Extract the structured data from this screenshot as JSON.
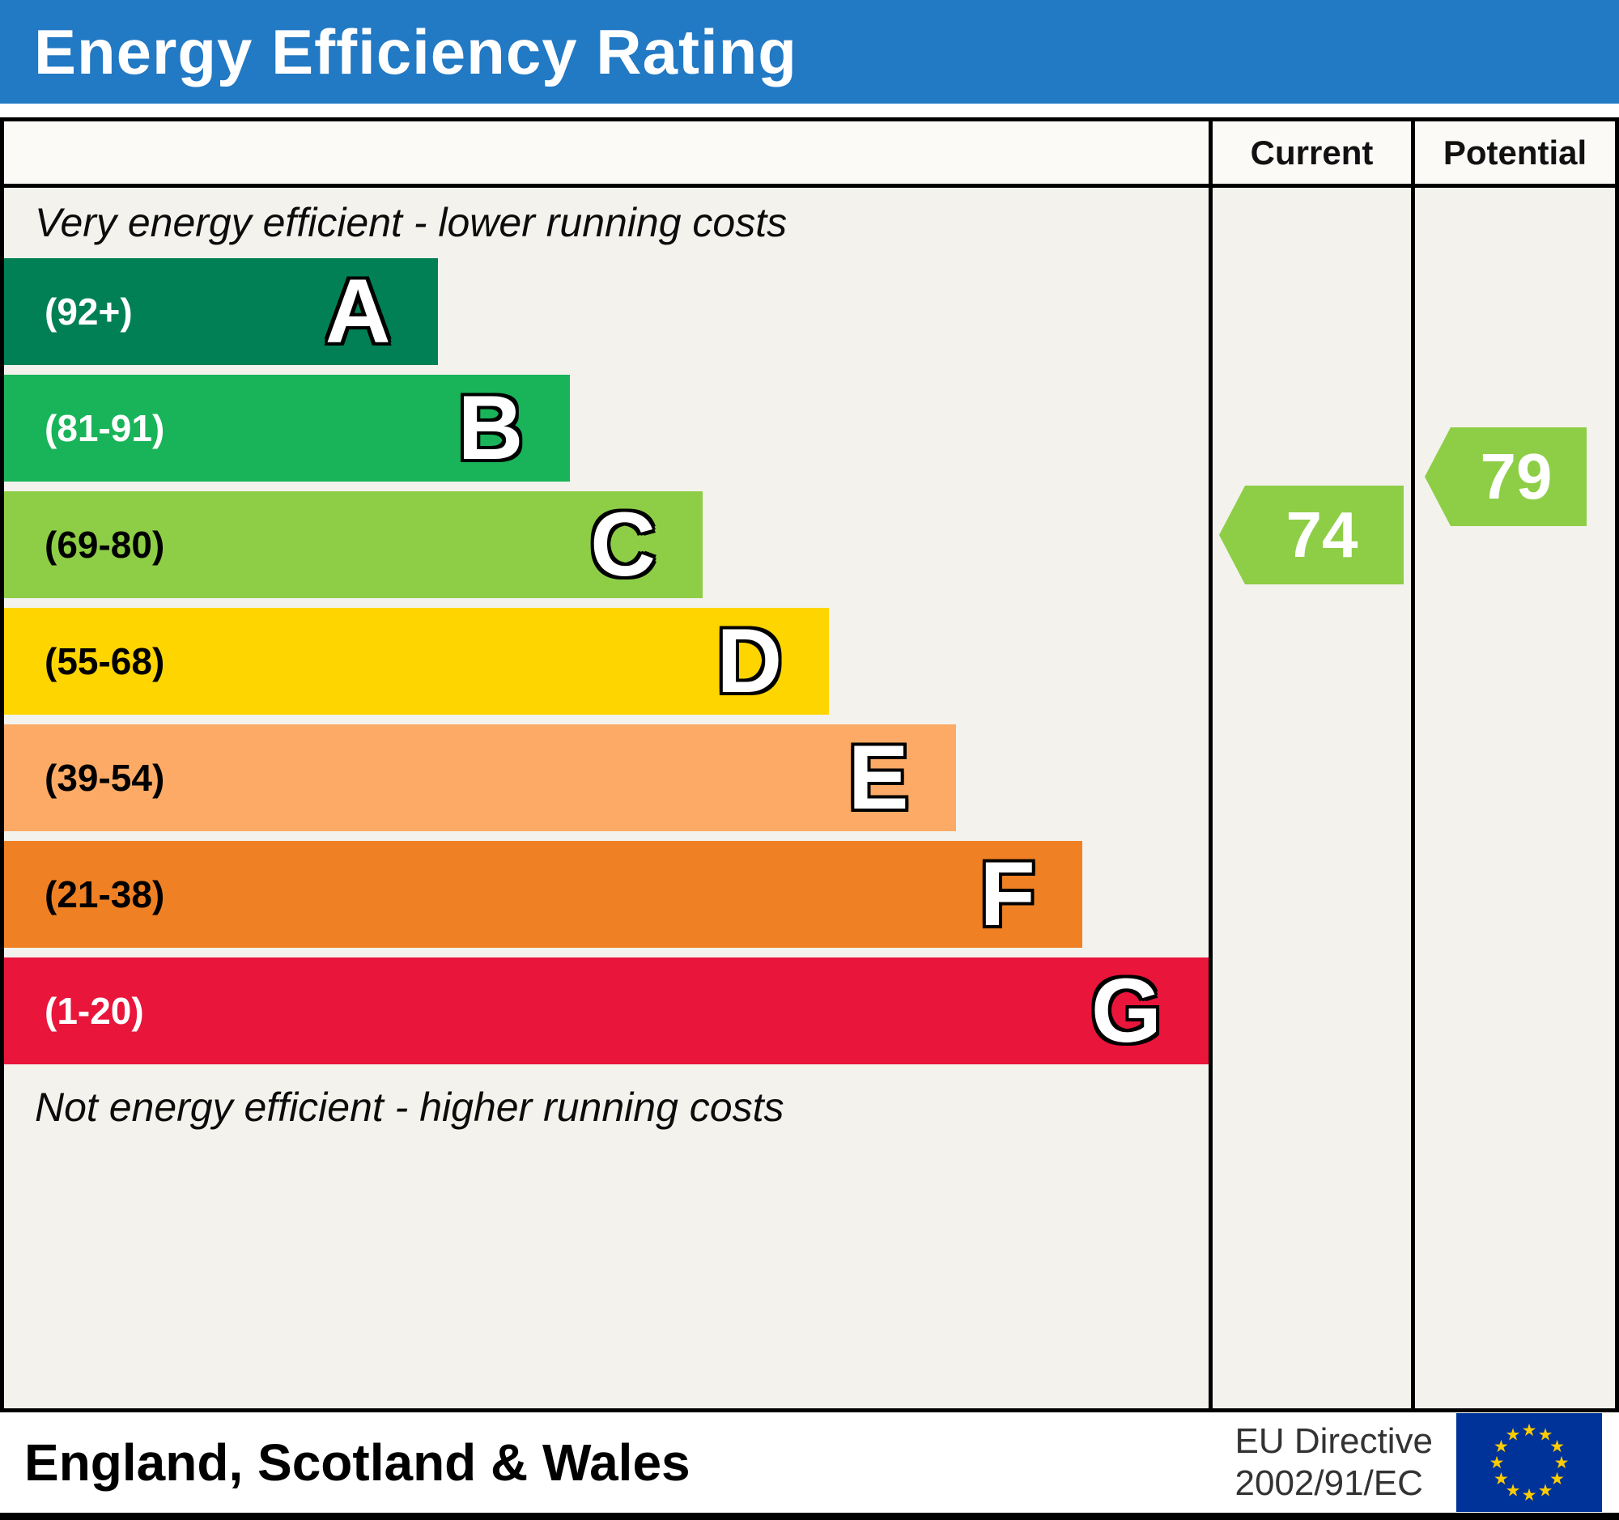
{
  "header": {
    "title": "Energy Efficiency Rating"
  },
  "columns": {
    "current": "Current",
    "potential": "Potential"
  },
  "chart_data": {
    "type": "bar",
    "title": "Energy Efficiency Rating",
    "top_caption": "Very energy efficient - lower running costs",
    "bottom_caption": "Not energy efficient - higher running costs",
    "bands": [
      {
        "letter": "A",
        "range_label": "(92+)",
        "range_min": 92,
        "range_max": 100,
        "color": "#008054",
        "label_color": "#ffffff",
        "width_pct": 36
      },
      {
        "letter": "B",
        "range_label": "(81-91)",
        "range_min": 81,
        "range_max": 91,
        "color": "#19b459",
        "label_color": "#ffffff",
        "width_pct": 47
      },
      {
        "letter": "C",
        "range_label": "(69-80)",
        "range_min": 69,
        "range_max": 80,
        "color": "#8dce46",
        "label_color": "#000000",
        "width_pct": 58
      },
      {
        "letter": "D",
        "range_label": "(55-68)",
        "range_min": 55,
        "range_max": 68,
        "color": "#ffd500",
        "label_color": "#000000",
        "width_pct": 68.5
      },
      {
        "letter": "E",
        "range_label": "(39-54)",
        "range_min": 39,
        "range_max": 54,
        "color": "#fcaa65",
        "label_color": "#000000",
        "width_pct": 79
      },
      {
        "letter": "F",
        "range_label": "(21-38)",
        "range_min": 21,
        "range_max": 38,
        "color": "#ef8023",
        "label_color": "#000000",
        "width_pct": 89.5
      },
      {
        "letter": "G",
        "range_label": "(1-20)",
        "range_min": 1,
        "range_max": 20,
        "color": "#e9153b",
        "label_color": "#ffffff",
        "width_pct": 100
      }
    ],
    "current": {
      "label": "Current",
      "value": 74,
      "band": "C",
      "color": "#8dce46"
    },
    "potential": {
      "label": "Potential",
      "value": 79,
      "band": "C",
      "color": "#8dce46"
    }
  },
  "footer": {
    "region": "England, Scotland & Wales",
    "directive_line1": "EU Directive",
    "directive_line2": "2002/91/EC",
    "flag_bg": "#003399",
    "flag_star_color": "#ffcc00"
  }
}
